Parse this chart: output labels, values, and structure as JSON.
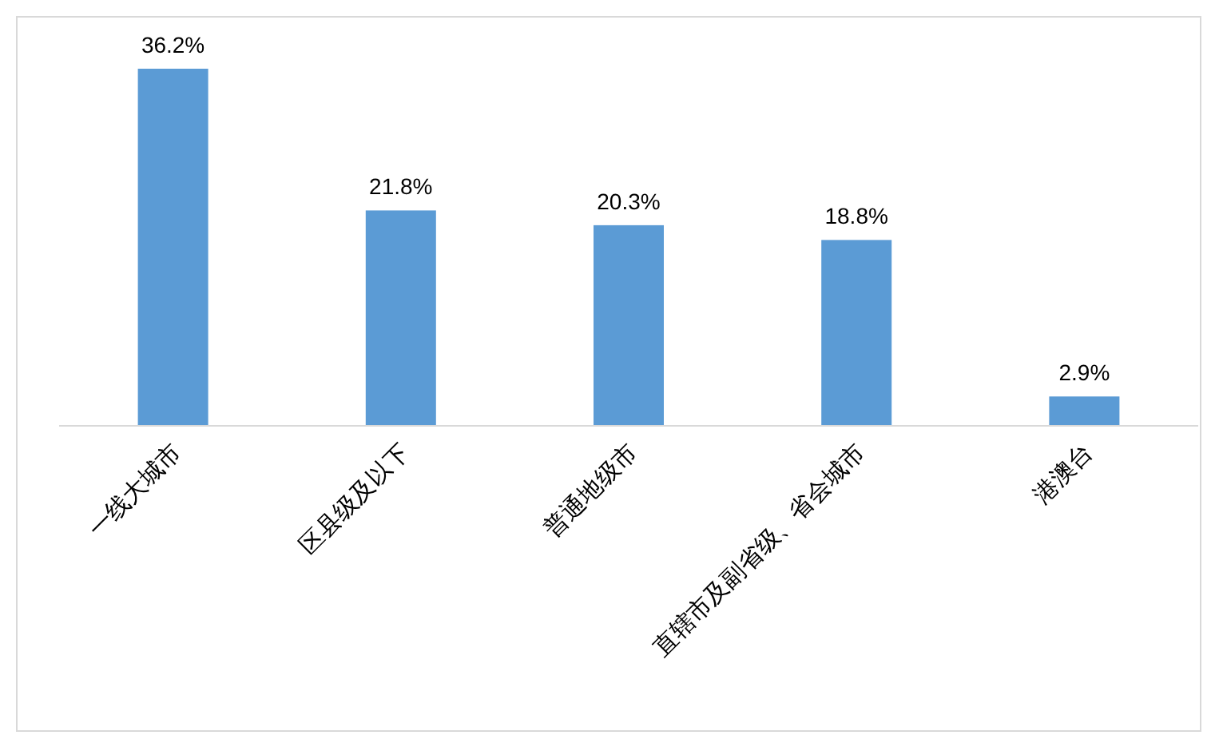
{
  "chart_data": {
    "type": "bar",
    "categories": [
      "一线大城市",
      "区县级及以下",
      "普通地级市",
      "直辖市及副省级、省会城市",
      "港澳台"
    ],
    "values": [
      36.2,
      21.8,
      20.3,
      18.8,
      2.9
    ],
    "value_labels": [
      "36.2%",
      "21.8%",
      "20.3%",
      "18.8%",
      "2.9%"
    ],
    "color": "#5b9bd5"
  }
}
